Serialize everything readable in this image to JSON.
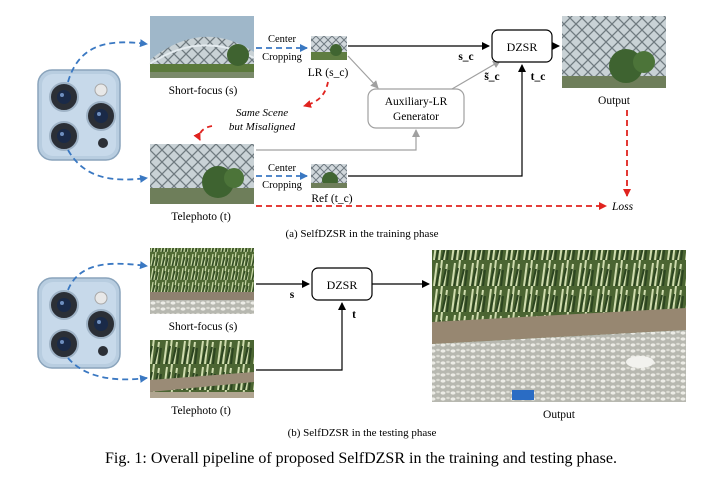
{
  "training": {
    "short_focus_label": "Short-focus (s)",
    "telephoto_label": "Telephoto (t)",
    "crop_top_line1": "Center",
    "crop_top_line2": "Cropping",
    "crop_bottom_line1": "Center",
    "crop_bottom_line2": "Cropping",
    "lr_label": "LR (s_c)",
    "ref_label": "Ref (t_c)",
    "same_scene_line1": "Same Scene",
    "same_scene_line2": "but Misaligned",
    "aux_line1": "Auxiliary-LR",
    "aux_line2": "Generator",
    "dzsr_label": "DZSR",
    "edge_sc": "s_c",
    "edge_sc_tilde": "s̃_c",
    "edge_tc": "t_c",
    "output_label": "Output",
    "loss_label": "Loss",
    "caption": "(a) SelfDZSR in the training phase"
  },
  "testing": {
    "short_focus_label": "Short-focus (s)",
    "telephoto_label": "Telephoto (t)",
    "dzsr_label": "DZSR",
    "edge_s": "s",
    "edge_t": "t",
    "output_label": "Output",
    "caption": "(b) SelfDZSR in the testing phase"
  },
  "figure_caption": "Fig. 1: Overall pipeline of proposed SelfDZSR in the training and testing phase.",
  "colors": {
    "dashed_blue": "#3a78c2",
    "dashed_red": "#e0231f",
    "aux_gray": "#a0a0a0",
    "phone_body": "#b8cde0"
  }
}
